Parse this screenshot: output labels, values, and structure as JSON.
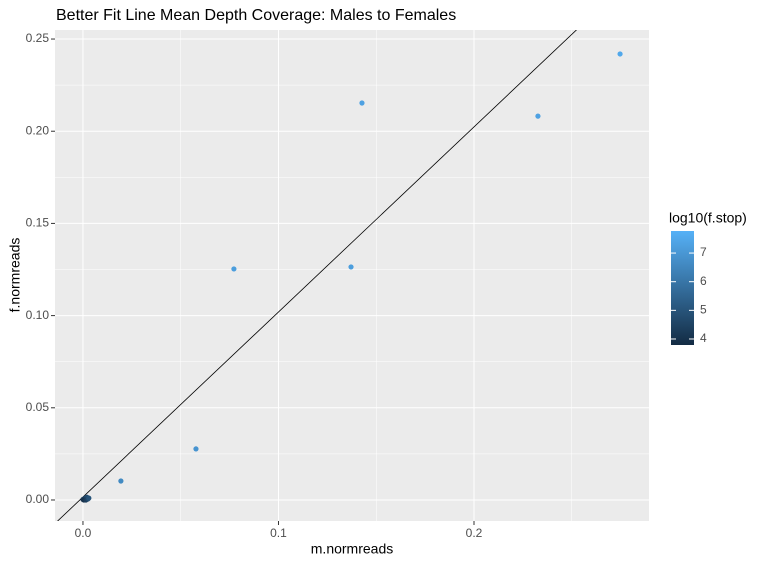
{
  "chart_data": {
    "type": "scatter",
    "title": "Better Fit Line Mean Depth Coverage: Males to Females",
    "x_label": "m.normreads",
    "y_label": "f.normreads",
    "x": [
      0.2747,
      0.2327,
      0.1427,
      0.1371,
      0.0772,
      0.0578,
      0.0194,
      0.0,
      0.001,
      0.002,
      0.0005,
      0.0015,
      0.0025,
      0.003
    ],
    "y": [
      0.2419,
      0.2082,
      0.2153,
      0.1264,
      0.1253,
      0.0277,
      0.0103,
      0.0003,
      0.001,
      0.0015,
      0.0,
      0.0,
      0.0005,
      0.001
    ],
    "color_values": [
      7.5,
      7.3,
      7.3,
      7.2,
      7.2,
      6.9,
      6.6,
      4.2,
      4.5,
      4.8,
      4.0,
      4.3,
      4.6,
      5.0
    ],
    "fit_line": {
      "slope": 1.0037,
      "intercept": 0.0016
    },
    "xlim": [
      -0.0143,
      0.2895
    ],
    "ylim": [
      -0.0114,
      0.2549
    ],
    "xticks": [
      {
        "value": 0,
        "label": "0.0"
      },
      {
        "value": 0.1,
        "label": "0.1"
      },
      {
        "value": 0.2,
        "label": "0.2"
      }
    ],
    "yticks": [
      {
        "value": 0,
        "label": "0.00"
      },
      {
        "value": 0.05,
        "label": "0.05"
      },
      {
        "value": 0.1,
        "label": "0.10"
      },
      {
        "value": 0.15,
        "label": "0.15"
      },
      {
        "value": 0.2,
        "label": "0.20"
      },
      {
        "value": 0.25,
        "label": "0.25"
      }
    ],
    "x_minor_grid": [
      0.05,
      0.15,
      0.25
    ],
    "y_minor_grid": [
      0.025,
      0.075,
      0.125,
      0.175,
      0.225
    ],
    "grid": true,
    "legend": {
      "title": "log10(f.stop)",
      "lim": [
        3.79,
        7.77
      ],
      "ticks": [
        4,
        5,
        6,
        7
      ],
      "low_color": "#132B43",
      "high_color": "#56B1F7"
    },
    "line_color": "#000000"
  }
}
